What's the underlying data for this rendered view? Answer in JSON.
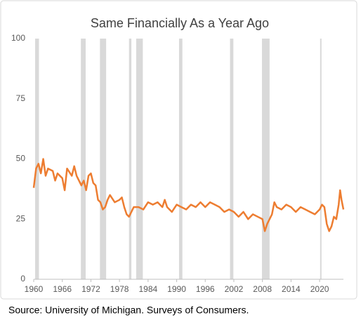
{
  "chart_data": {
    "type": "line",
    "title": "Same Financially As a Year Ago",
    "source": "Source: University of Michigan. Surveys of Consumers.",
    "x": [
      1960,
      1960.5,
      1961,
      1961.5,
      1962,
      1962.5,
      1963,
      1964,
      1964.5,
      1965,
      1966,
      1966.5,
      1967,
      1968,
      1968.5,
      1969,
      1970,
      1970.5,
      1971,
      1971.5,
      1972,
      1972.5,
      1973,
      1973.5,
      1974,
      1974.5,
      1975,
      1975.5,
      1976,
      1977,
      1978,
      1978.5,
      1979,
      1979.5,
      1980,
      1980.5,
      1981,
      1982,
      1983,
      1984,
      1985,
      1986,
      1987,
      1987.5,
      1988,
      1989,
      1990,
      1991,
      1992,
      1993,
      1994,
      1995,
      1996,
      1997,
      1998,
      1999,
      2000,
      2001,
      2002,
      2003,
      2004,
      2005,
      2006,
      2007,
      2008,
      2008.5,
      2009,
      2010,
      2010.5,
      2011,
      2012,
      2013,
      2014,
      2015,
      2016,
      2017,
      2018,
      2019,
      2020,
      2020.5,
      2021,
      2021.5,
      2022,
      2022.5,
      2023,
      2023.5,
      2024,
      2024.3,
      2024.6,
      2025
    ],
    "series": [
      {
        "name": "Same Financially",
        "color": "#ed7d31",
        "values": [
          38,
          46,
          48,
          44,
          50,
          43,
          46,
          45,
          41,
          44,
          42,
          37,
          46,
          43,
          47,
          43,
          39,
          41,
          37,
          43,
          44,
          40,
          39,
          33,
          32,
          29,
          30,
          33,
          35,
          32,
          33,
          34,
          30,
          27,
          26,
          28,
          30,
          30,
          29,
          32,
          31,
          32,
          30,
          33,
          30,
          28,
          31,
          30,
          29,
          31,
          30,
          32,
          30,
          32,
          31,
          30,
          28,
          29,
          28,
          26,
          28,
          25,
          27,
          26,
          25,
          20,
          23,
          27,
          32,
          30,
          29,
          31,
          30,
          28,
          30,
          29,
          28,
          27,
          29,
          31,
          30,
          23,
          20,
          22,
          26,
          25,
          31,
          37,
          33,
          29
        ]
      }
    ],
    "recessions": [
      [
        1960.3,
        1961.1
      ],
      [
        1969.9,
        1970.9
      ],
      [
        1973.9,
        1975.2
      ],
      [
        1980.0,
        1980.5
      ],
      [
        1981.5,
        1982.9
      ],
      [
        1990.5,
        1991.2
      ],
      [
        2001.2,
        2001.9
      ],
      [
        2007.9,
        2009.5
      ],
      [
        2020.1,
        2020.4
      ]
    ],
    "recession_color": "#d9d9d9",
    "xlim": [
      1960,
      2025
    ],
    "xticks": [
      1960,
      1966,
      1972,
      1978,
      1984,
      1990,
      1996,
      2002,
      2008,
      2014,
      2020
    ],
    "ylim": [
      0,
      100
    ],
    "yticks": [
      0,
      25,
      50,
      75,
      100
    ],
    "grid": false
  }
}
